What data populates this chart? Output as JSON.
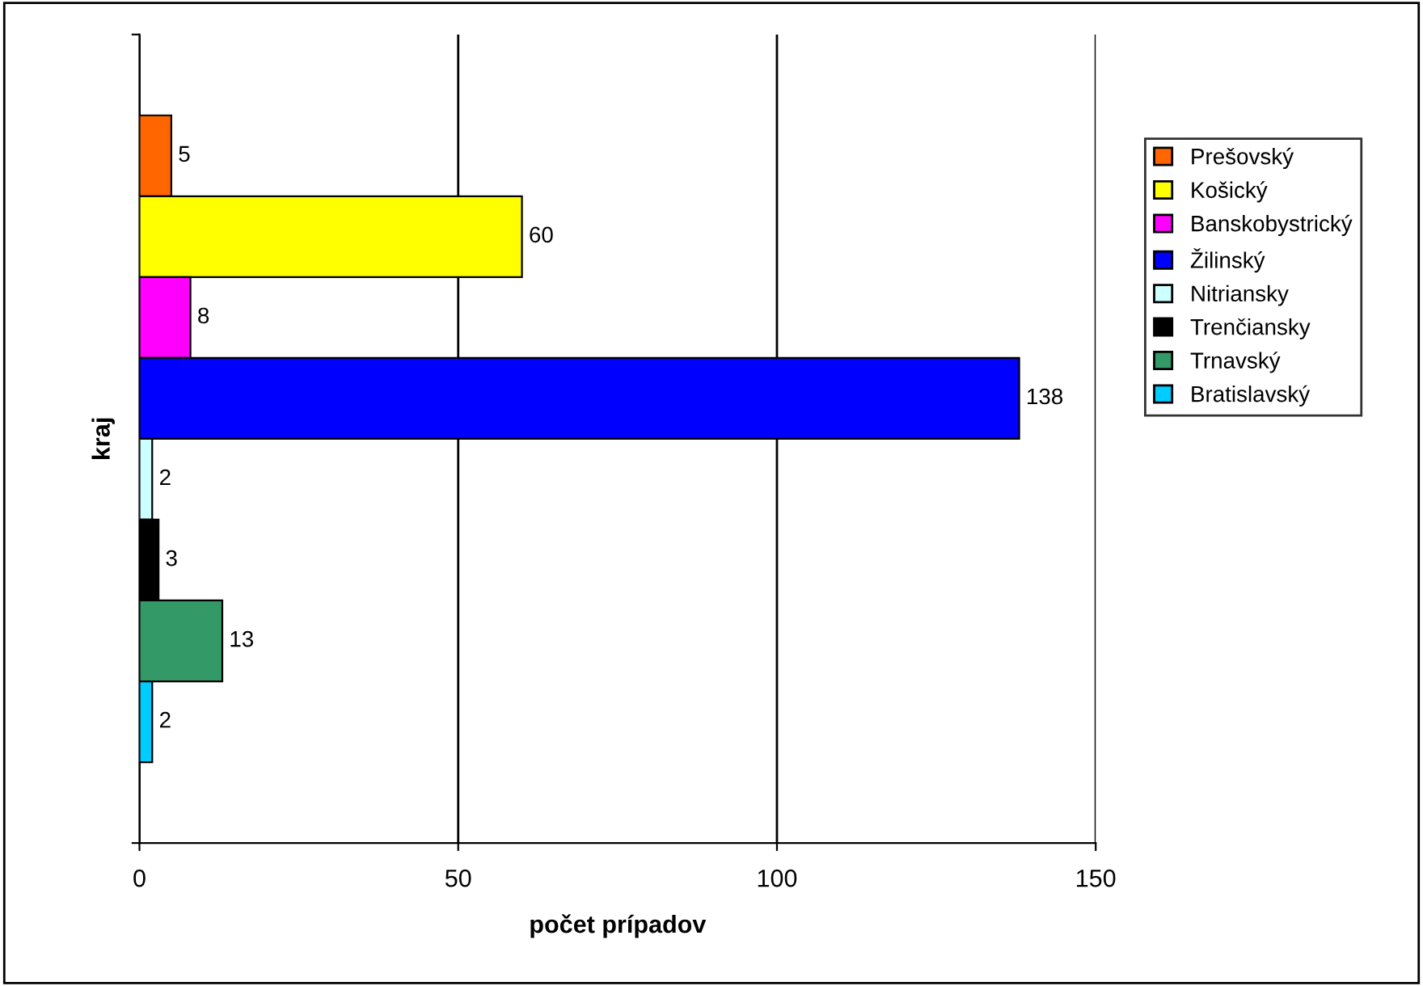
{
  "chart_data": {
    "type": "bar",
    "orientation": "horizontal",
    "categories": [
      null
    ],
    "xlabel": "počet prípadov",
    "ylabel": "kraj",
    "series": [
      {
        "name": "Prešovský",
        "color": "#ff6600",
        "values": [
          5
        ]
      },
      {
        "name": "Košický",
        "color": "#ffff00",
        "values": [
          60
        ]
      },
      {
        "name": "Banskobystrický",
        "color": "#ff00ff",
        "values": [
          8
        ]
      },
      {
        "name": "Žilinský",
        "color": "#0000ff",
        "values": [
          138
        ]
      },
      {
        "name": "Nitriansky",
        "color": "#ccffff",
        "values": [
          2
        ]
      },
      {
        "name": "Trenčiansky",
        "color": "#000000",
        "values": [
          3
        ]
      },
      {
        "name": "Trnavský",
        "color": "#339966",
        "values": [
          13
        ]
      },
      {
        "name": "Bratislavský",
        "color": "#00ccff",
        "values": [
          2
        ]
      }
    ],
    "xlim": [
      0,
      150
    ],
    "xticks": [
      0,
      50,
      100,
      150
    ],
    "grid": "x",
    "legend": "right",
    "data_labels": true
  }
}
